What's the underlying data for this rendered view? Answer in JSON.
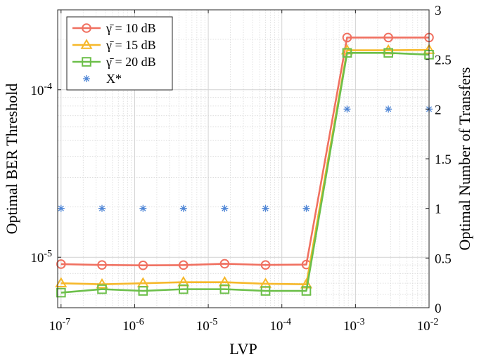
{
  "chart_data": {
    "type": "line",
    "xlabel": "LVP",
    "ylabel": "Optimal BER Threshold",
    "ylabel_right": "Optimal Number of Transfers",
    "x_scale": "log",
    "y_scale": "log",
    "xlim": [
      9e-08,
      0.01
    ],
    "ylim": [
      5e-06,
      0.0003
    ],
    "y2lim": [
      0,
      3
    ],
    "grid": true,
    "legend_position": "top-left",
    "x_ticks": [
      {
        "value": 1e-07,
        "base": "10",
        "exp": "-7"
      },
      {
        "value": 1e-06,
        "base": "10",
        "exp": "-6"
      },
      {
        "value": 1e-05,
        "base": "10",
        "exp": "-5"
      },
      {
        "value": 0.0001,
        "base": "10",
        "exp": "-4"
      },
      {
        "value": 0.001,
        "base": "10",
        "exp": "-3"
      },
      {
        "value": 0.01,
        "base": "10",
        "exp": "-2"
      }
    ],
    "y_ticks": [
      {
        "value": 1e-05,
        "base": "10",
        "exp": "-5"
      },
      {
        "value": 0.0001,
        "base": "10",
        "exp": "-4"
      }
    ],
    "y2_ticks": [
      "0",
      "0.5",
      "1",
      "1.5",
      "2",
      "2.5",
      "3"
    ],
    "x": [
      1e-07,
      3.6e-07,
      1.3e-06,
      4.6e-06,
      1.67e-05,
      6e-05,
      0.000215,
      0.00077,
      0.0028,
      0.01
    ],
    "series": [
      {
        "name": "γ̄ = 10 dB",
        "color": "#f07060",
        "marker": "circle",
        "axis": "left",
        "values": [
          9.1e-06,
          9e-06,
          8.95e-06,
          8.98e-06,
          9.15e-06,
          9e-06,
          9.05e-06,
          0.000205,
          0.000205,
          0.000205
        ]
      },
      {
        "name": "γ̄ = 15 dB",
        "color": "#f6b82a",
        "marker": "triangle",
        "axis": "left",
        "values": [
          7e-06,
          6.9e-06,
          7e-06,
          7.1e-06,
          7.1e-06,
          6.95e-06,
          6.9e-06,
          0.000172,
          0.000172,
          0.000173
        ]
      },
      {
        "name": "γ̄ = 20 dB",
        "color": "#6cbf4a",
        "marker": "square",
        "axis": "left",
        "values": [
          6.15e-06,
          6.45e-06,
          6.3e-06,
          6.45e-06,
          6.45e-06,
          6.3e-06,
          6.3e-06,
          0.000166,
          0.000166,
          0.000162
        ]
      },
      {
        "name": "X*",
        "color": "#4f86d6",
        "marker": "asterisk",
        "axis": "right",
        "line": false,
        "values": [
          1,
          1,
          1,
          1,
          1,
          1,
          1,
          2,
          2,
          2
        ]
      }
    ]
  }
}
